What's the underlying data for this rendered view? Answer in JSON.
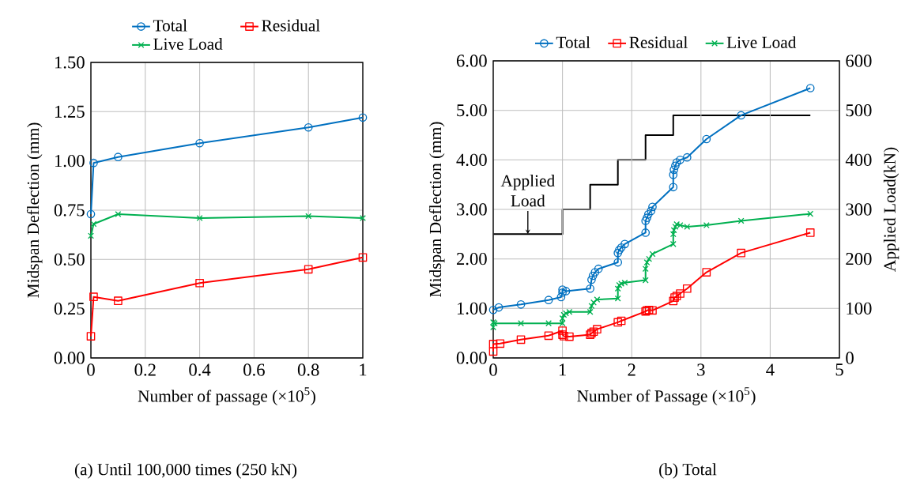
{
  "chart_data": [
    {
      "type": "line",
      "xlabel": "Number of passage (×10$^{5}$)",
      "ylabel": "Midspan Deflection (mm)",
      "xlim": [
        0,
        1
      ],
      "xticks": [
        0,
        0.2,
        0.4,
        0.6,
        0.8,
        1
      ],
      "ylim": [
        0,
        1.5
      ],
      "yticks": [
        {
          "value": 0,
          "label": "0.00"
        },
        {
          "value": 0.25,
          "label": "0.25"
        },
        {
          "value": 0.5,
          "label": "0.50"
        },
        {
          "value": 0.75,
          "label": "0.75"
        },
        {
          "value": 1,
          "label": "1.00"
        },
        {
          "value": 1.25,
          "label": "1.25"
        },
        {
          "value": 1.5,
          "label": "1.50"
        }
      ],
      "grid": true,
      "legend": "top",
      "series": [
        {
          "name": "Total",
          "color": "#0070c0",
          "marker": "circle",
          "x": [
            0,
            0.01,
            0.1,
            0.4,
            0.8,
            1
          ],
          "values": [
            0.73,
            0.99,
            1.02,
            1.09,
            1.17,
            1.22
          ]
        },
        {
          "name": "Residual",
          "color": "#ff0000",
          "marker": "square",
          "x": [
            0,
            0.01,
            0.1,
            0.4,
            0.8,
            1
          ],
          "values": [
            0.11,
            0.31,
            0.29,
            0.38,
            0.45,
            0.51
          ]
        },
        {
          "name": "Live Load",
          "color": "#00b050",
          "marker": "cross",
          "x": [
            0,
            0.01,
            0.1,
            0.4,
            0.8,
            1
          ],
          "values": [
            0.62,
            0.68,
            0.73,
            0.71,
            0.72,
            0.71
          ]
        }
      ],
      "annotations": [
        "(a) Until 100,000 times (250 kN)"
      ]
    },
    {
      "type": "line",
      "xlabel": "Number of Passage (×10$^{5}$)",
      "ylabel": "Midspan Deflection (mm)",
      "y2label": "Applied Load(kN)",
      "xlim": [
        0,
        5
      ],
      "xticks": [
        0,
        1,
        2,
        3,
        4,
        5
      ],
      "ylim": [
        0,
        6
      ],
      "yticks": [
        {
          "value": 0,
          "label": "0.00"
        },
        {
          "value": 1,
          "label": "1.00"
        },
        {
          "value": 2,
          "label": "2.00"
        },
        {
          "value": 3,
          "label": "3.00"
        },
        {
          "value": 4,
          "label": "4.00"
        },
        {
          "value": 5,
          "label": "5.00"
        },
        {
          "value": 6,
          "label": "6.00"
        }
      ],
      "y2lim": [
        0,
        600
      ],
      "y2ticks": [
        0,
        100,
        200,
        300,
        400,
        500,
        600
      ],
      "grid": true,
      "legend": "top",
      "series": [
        {
          "type": "step",
          "axis": "y2",
          "color": "#000000",
          "marker": "none",
          "x": [
            0,
            1,
            1.4,
            1.8,
            2.2,
            2.6,
            4.58
          ],
          "values": [
            250,
            300,
            350,
            400,
            450,
            490,
            490
          ]
        },
        {
          "name": "Total",
          "color": "#0070c0",
          "marker": "circle",
          "x": [
            0,
            0.08,
            0.4,
            0.8,
            0.98,
            1.0,
            1.0,
            1.05,
            1.4,
            1.42,
            1.44,
            1.47,
            1.52,
            1.8,
            1.8,
            1.82,
            1.85,
            1.9,
            2.2,
            2.2,
            2.22,
            2.24,
            2.28,
            2.3,
            2.6,
            2.6,
            2.61,
            2.63,
            2.65,
            2.7,
            2.8,
            3.08,
            3.58,
            4.58
          ],
          "values": [
            0.97,
            1.02,
            1.08,
            1.17,
            1.23,
            1.32,
            1.38,
            1.35,
            1.4,
            1.58,
            1.66,
            1.73,
            1.8,
            1.93,
            2.12,
            2.18,
            2.23,
            2.3,
            2.53,
            2.77,
            2.83,
            2.9,
            2.97,
            3.05,
            3.45,
            3.7,
            3.8,
            3.88,
            3.95,
            4.0,
            4.05,
            4.42,
            4.9,
            5.45
          ]
        },
        {
          "name": "Residual",
          "color": "#ff0000",
          "marker": "square",
          "x": [
            0,
            0,
            0.1,
            0.4,
            0.8,
            1.0,
            1.0,
            1.02,
            1.1,
            1.4,
            1.42,
            1.45,
            1.5,
            1.8,
            1.82,
            1.85,
            1.9,
            2.2,
            2.22,
            2.25,
            2.3,
            2.6,
            2.62,
            2.65,
            2.7,
            2.8,
            3.08,
            3.58,
            4.58
          ],
          "values": [
            0.13,
            0.28,
            0.29,
            0.37,
            0.45,
            0.55,
            0.47,
            0.44,
            0.43,
            0.47,
            0.5,
            0.53,
            0.58,
            0.72,
            null,
            0.75,
            null,
            0.94,
            0.96,
            0.97,
            0.96,
            1.15,
            1.22,
            1.25,
            1.3,
            1.4,
            1.73,
            2.12,
            2.53
          ]
        },
        {
          "name": "Live Load",
          "color": "#00b050",
          "marker": "cross",
          "x": [
            0,
            0,
            0.02,
            0.4,
            0.8,
            1.0,
            1.0,
            1.02,
            1.05,
            1.1,
            1.4,
            1.42,
            1.45,
            1.5,
            1.8,
            1.8,
            1.82,
            1.85,
            1.9,
            2.2,
            2.2,
            2.22,
            2.25,
            2.3,
            2.6,
            2.6,
            2.61,
            2.63,
            2.65,
            2.7,
            2.8,
            3.08,
            3.58,
            4.58
          ],
          "values": [
            0.62,
            0.72,
            0.7,
            0.7,
            0.7,
            0.7,
            0.8,
            0.87,
            0.9,
            0.93,
            0.93,
            1.05,
            1.12,
            1.18,
            1.2,
            1.4,
            1.47,
            1.5,
            1.52,
            1.57,
            1.8,
            1.93,
            2.0,
            2.1,
            2.3,
            2.5,
            2.58,
            2.65,
            2.7,
            2.68,
            2.65,
            2.68,
            2.77,
            2.91
          ]
        }
      ],
      "annotations": [
        {
          "text": "Applied Load",
          "x": 0.5,
          "y": 2.5
        },
        "(b) Total"
      ]
    }
  ]
}
